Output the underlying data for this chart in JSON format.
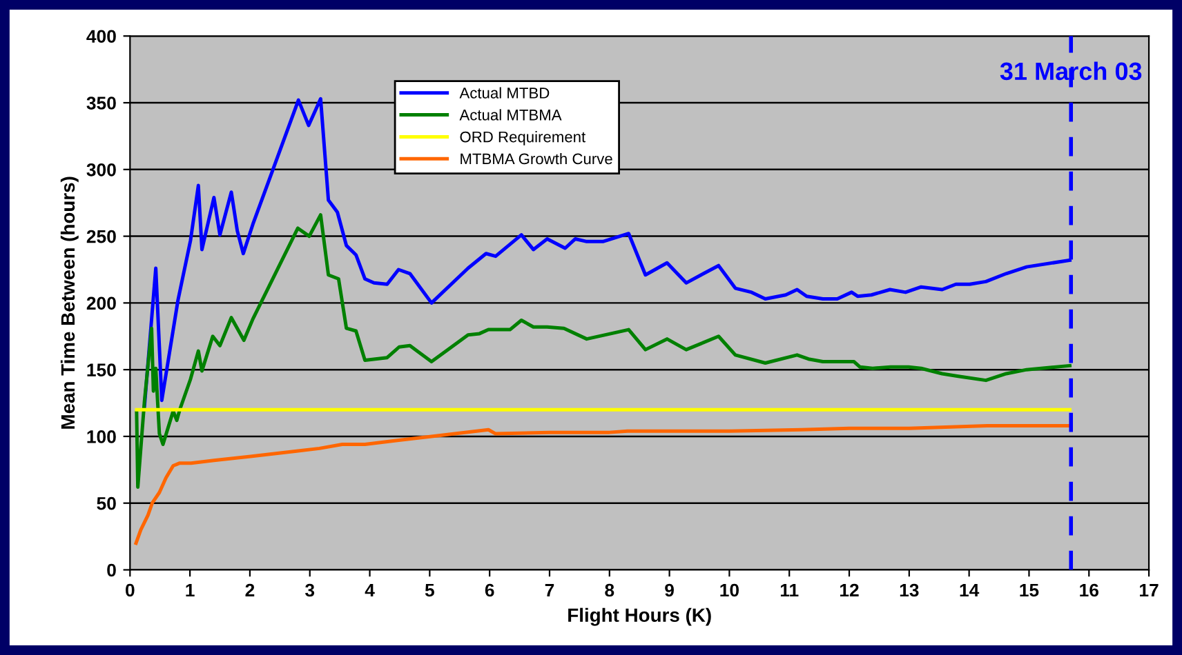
{
  "chart_data": {
    "type": "line",
    "xlabel": "Flight Hours (K)",
    "ylabel": "Mean Time Between (hours)",
    "xlim": [
      0,
      17
    ],
    "xticks": [
      0,
      1,
      2,
      3,
      4,
      5,
      6,
      7,
      8,
      9,
      10,
      11,
      12,
      13,
      14,
      15,
      16,
      17
    ],
    "ylim": [
      0,
      400
    ],
    "yticks": [
      0,
      50,
      100,
      150,
      200,
      250,
      300,
      350,
      400
    ],
    "grid": "y",
    "legend": "top",
    "marker": "none",
    "line_style": "solid",
    "series": [
      {
        "name": "Actual MTBD",
        "color": "#0000ff",
        "x": [
          0.24,
          0.43,
          0.53,
          0.8,
          1.01,
          1.14,
          1.2,
          1.4,
          1.5,
          1.69,
          1.79,
          1.89,
          2.05,
          2.81,
          2.98,
          3.18,
          3.31,
          3.46,
          3.61,
          3.77,
          3.92,
          4.07,
          4.29,
          4.48,
          4.67,
          5.03,
          5.64,
          5.94,
          6.1,
          6.53,
          6.73,
          6.96,
          7.26,
          7.43,
          7.62,
          7.89,
          8.32,
          8.6,
          8.96,
          9.28,
          9.57,
          9.82,
          10.1,
          10.37,
          10.6,
          10.94,
          11.13,
          11.29,
          11.56,
          11.8,
          12.04,
          12.14,
          12.37,
          12.68,
          12.94,
          13.2,
          13.55,
          13.78,
          14.01,
          14.28,
          14.62,
          14.96,
          15.68
        ],
        "values": [
          122,
          226,
          127,
          202,
          247,
          288,
          240,
          279,
          251,
          283,
          254,
          237,
          259,
          352,
          333,
          353,
          277,
          268,
          243,
          236,
          218,
          215,
          214,
          225,
          222,
          200,
          226,
          237,
          235,
          251,
          240,
          248,
          241,
          248,
          246,
          246,
          252,
          221,
          230,
          215,
          222,
          228,
          211,
          208,
          203,
          206,
          210,
          205,
          203,
          203,
          208,
          205,
          206,
          210,
          208,
          212,
          210,
          214,
          214,
          216,
          222,
          227,
          232
        ]
      },
      {
        "name": "Actual MTBMA",
        "color": "#008000",
        "x": [
          0.11,
          0.13,
          0.24,
          0.36,
          0.39,
          0.43,
          0.49,
          0.55,
          0.72,
          0.78,
          0.83,
          1.01,
          1.14,
          1.2,
          1.38,
          1.5,
          1.69,
          1.9,
          2.05,
          2.8,
          2.99,
          3.18,
          3.31,
          3.48,
          3.61,
          3.77,
          3.92,
          4.29,
          4.49,
          4.67,
          5.03,
          5.64,
          5.83,
          5.98,
          6.34,
          6.53,
          6.73,
          6.96,
          7.24,
          7.62,
          8.32,
          8.6,
          8.96,
          9.28,
          9.82,
          10.1,
          10.6,
          11.13,
          11.32,
          11.56,
          12.08,
          12.18,
          12.39,
          12.69,
          12.99,
          13.2,
          13.55,
          13.82,
          14.28,
          14.62,
          14.96,
          15.68
        ],
        "values": [
          118,
          62,
          126,
          181,
          134,
          151,
          102,
          94,
          119,
          112,
          120,
          143,
          164,
          149,
          175,
          168,
          189,
          172,
          188,
          256,
          250,
          266,
          221,
          218,
          181,
          179,
          157,
          159,
          167,
          168,
          156,
          176,
          177,
          180,
          180,
          187,
          182,
          182,
          181,
          173,
          180,
          165,
          173,
          165,
          175,
          161,
          155,
          161,
          158,
          156,
          156,
          152,
          151,
          152,
          152,
          151,
          147,
          145,
          142,
          147,
          150,
          153
        ]
      },
      {
        "name": "ORD Requirement",
        "color": "#ffff00",
        "x": [
          0.11,
          15.68
        ],
        "values": [
          120,
          120
        ]
      },
      {
        "name": "MTBMA Growth Curve",
        "color": "#ff6600",
        "x": [
          0.1,
          0.18,
          0.3,
          0.37,
          0.49,
          0.6,
          0.72,
          0.83,
          1.02,
          1.4,
          2.01,
          2.78,
          3.16,
          3.54,
          3.92,
          4.46,
          5.03,
          5.98,
          6.1,
          7,
          8,
          8.3,
          10,
          11.2,
          12,
          13,
          14.3,
          15.68
        ],
        "values": [
          20,
          30,
          41,
          50,
          58,
          69,
          78,
          80,
          80,
          82,
          85,
          89,
          91,
          94,
          94,
          97,
          100,
          105,
          102,
          103,
          103,
          104,
          104,
          105,
          106,
          106,
          108,
          108
        ]
      }
    ],
    "ref_lines": [
      {
        "axis": "x",
        "value": 15.7,
        "label": "31 March 03",
        "color": "#0000ff",
        "line_style": "dashed"
      }
    ]
  }
}
